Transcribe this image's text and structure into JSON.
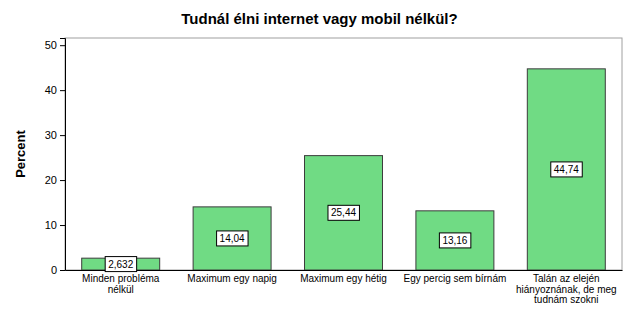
{
  "chart_data": {
    "type": "bar",
    "title": "Tudnál élni internet vagy mobil nélkül?",
    "y_label": "Percent",
    "categories": [
      "Minden probléma nélkül",
      "Maximum egy napig",
      "Maximum egy hétig",
      "Egy percig sem bírnám",
      "Talán az elején hiányoznának, de meg tudnám szokni"
    ],
    "values": [
      2.632,
      14.04,
      25.44,
      13.16,
      44.74
    ],
    "value_labels": [
      "2,632",
      "14,04",
      "25,44",
      "13,16",
      "44,74"
    ],
    "data_labels": true,
    "color": "#70db84",
    "ylim": [
      0,
      51.6
    ],
    "yticks": [
      0,
      10,
      20,
      30,
      40,
      50
    ],
    "grid": false
  }
}
